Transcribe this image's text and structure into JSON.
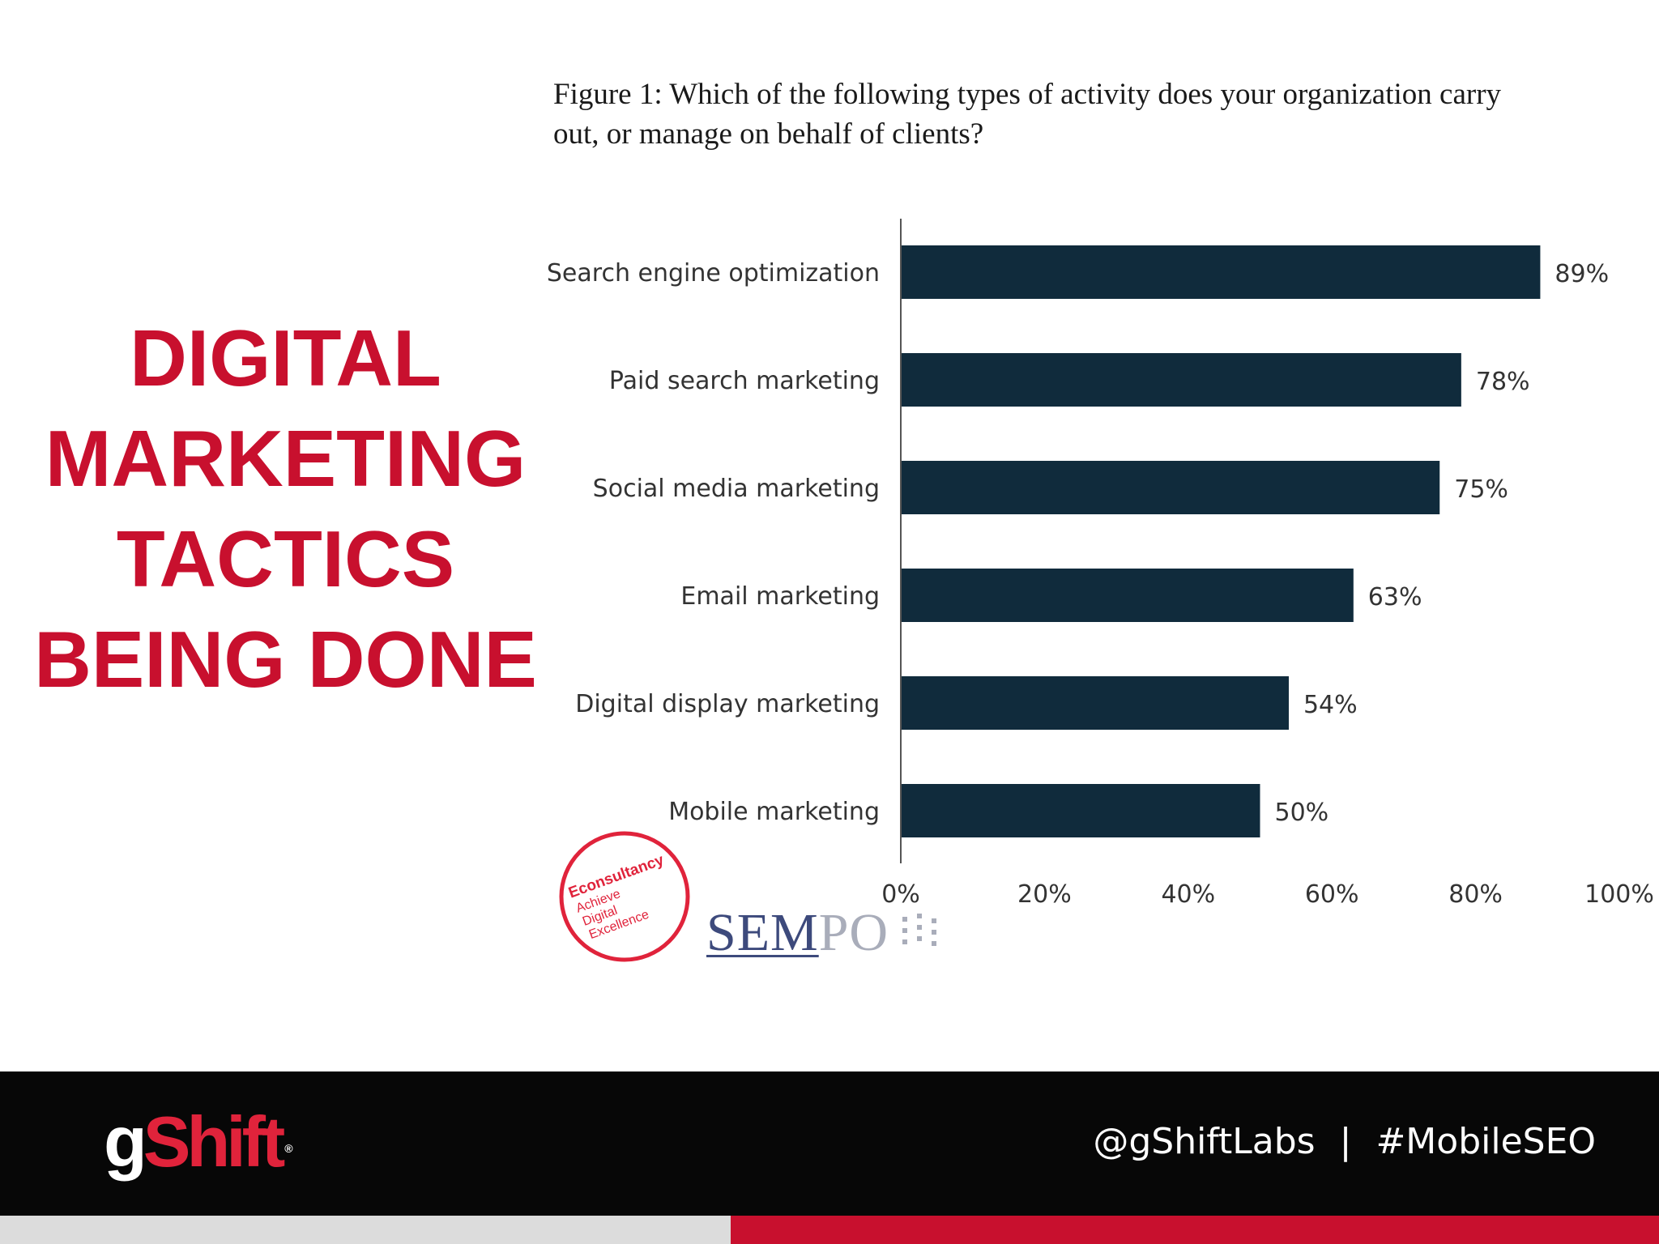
{
  "slide": {
    "title_lines": [
      "DIGITAL",
      "MARKETING",
      "TACTICS",
      "BEING DONE"
    ]
  },
  "figure": {
    "caption_lines": [
      "Figure 1: Which of the following types of activity does your organization carry",
      "out, or manage on behalf of clients?"
    ]
  },
  "chart_data": {
    "type": "bar",
    "orientation": "horizontal",
    "categories": [
      "Search engine optimization",
      "Paid search marketing",
      "Social media marketing",
      "Email marketing",
      "Digital display marketing",
      "Mobile marketing"
    ],
    "values": [
      89,
      78,
      75,
      63,
      54,
      50
    ],
    "data_labels": [
      "89%",
      "78%",
      "75%",
      "63%",
      "54%",
      "50%"
    ],
    "x_ticks": [
      0,
      20,
      40,
      60,
      80,
      100
    ],
    "x_tick_labels": [
      "0%",
      "20%",
      "40%",
      "60%",
      "80%",
      "100%"
    ],
    "xlim": [
      0,
      100
    ],
    "bar_color": "#102b3c",
    "grid": false
  },
  "logos": {
    "econsultancy": {
      "lines": [
        "Econsultancy",
        "Achieve",
        "Digital",
        "Excellence"
      ],
      "color": "#e0233b"
    },
    "sempo": {
      "part1": "SEM",
      "part2": "PO"
    }
  },
  "footer": {
    "brand": {
      "g": "g",
      "shift": "Shift",
      "reg": "®"
    },
    "twitter": "@gShiftLabs",
    "separator": "|",
    "hashtag": "#MobileSEO"
  }
}
